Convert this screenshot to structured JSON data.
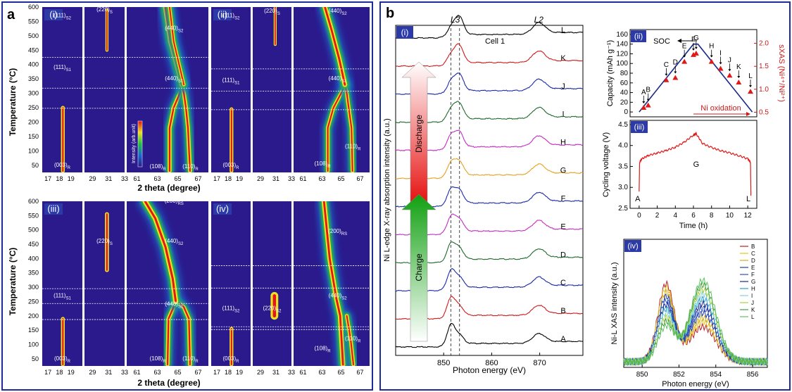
{
  "figure": {
    "panel_a_label": "a",
    "panel_b_label": "b",
    "colors": {
      "frame": "#1f2a9c",
      "bg": "#2b1a8c",
      "grid": "#ffffff",
      "roman_box": "#2c3aa8"
    }
  },
  "panel_a": {
    "y_label": "Temperature (°C)",
    "x_label": "2 theta (degree)",
    "y_ticks": [
      "50",
      "100",
      "150",
      "200",
      "250",
      "300",
      "350",
      "400",
      "450",
      "500",
      "550",
      "600"
    ],
    "x_ticks_1": [
      "17",
      "18",
      "19"
    ],
    "x_ticks_2": [
      "29",
      "31",
      "33"
    ],
    "x_ticks_3": [
      "61",
      "63",
      "65",
      "67"
    ],
    "colorbar_label": "Intensity (arb.unit)",
    "subpanels": [
      {
        "roman": "(i)",
        "transitions_c": [
          425,
          318,
          248
        ],
        "labels": [
          {
            "text": "(111)",
            "sub": "S2",
            "col": 0,
            "t": 565
          },
          {
            "text": "(111)",
            "sub": "S1",
            "col": 0,
            "t": 385
          },
          {
            "text": "(003)",
            "sub": "R",
            "col": 0,
            "t": 45
          },
          {
            "text": "(220)",
            "sub": "S",
            "col": 1,
            "t": 585
          },
          {
            "text": "(440)",
            "sub": "S2",
            "col": 2,
            "t": 520
          },
          {
            "text": "(440)",
            "sub": "S1",
            "col": 2,
            "t": 345
          },
          {
            "text": "(108)",
            "sub": "R",
            "col": 2,
            "t": 40
          },
          {
            "text": "(110)",
            "sub": "R",
            "col": 2,
            "t": 40
          }
        ]
      },
      {
        "roman": "(ii)",
        "transitions_c": [
          385,
          308,
          243
        ],
        "labels": [
          {
            "text": "(111)",
            "sub": "S2",
            "col": 0,
            "t": 565
          },
          {
            "text": "(111)",
            "sub": "S1",
            "col": 0,
            "t": 340
          },
          {
            "text": "(003)",
            "sub": "R",
            "col": 0,
            "t": 45
          },
          {
            "text": "(220)",
            "sub": "S",
            "col": 1,
            "t": 580
          },
          {
            "text": "(440)",
            "sub": "S2",
            "col": 2,
            "t": 580
          },
          {
            "text": "(440)",
            "sub": "S1",
            "col": 2,
            "t": 345
          },
          {
            "text": "(108)",
            "sub": "R",
            "col": 2,
            "t": 50
          },
          {
            "text": "(110)",
            "sub": "R",
            "col": 2,
            "t": 110
          }
        ]
      },
      {
        "roman": "(iii)",
        "transitions_c": [
          295,
          243,
          187
        ],
        "labels": [
          {
            "text": "(111)",
            "sub": "S1",
            "col": 0,
            "t": 265
          },
          {
            "text": "(003)",
            "sub": "R",
            "col": 0,
            "t": 45
          },
          {
            "text": "(220)",
            "sub": "S",
            "col": 1,
            "t": 455
          },
          {
            "text": "(200)",
            "sub": "RS",
            "col": 2,
            "t": 595
          },
          {
            "text": "(440)",
            "sub": "S2",
            "col": 2,
            "t": 455
          },
          {
            "text": "(440)",
            "sub": "S1",
            "col": 2,
            "t": 235
          },
          {
            "text": "(108)",
            "sub": "R",
            "col": 2,
            "t": 45
          },
          {
            "text": "(110)",
            "sub": "R",
            "col": 2,
            "t": 45
          }
        ]
      },
      {
        "roman": "(iv)",
        "transitions_c": [
          375,
          297,
          162,
          152
        ],
        "labels": [
          {
            "text": "(111)",
            "sub": "S2",
            "col": 0,
            "t": 220
          },
          {
            "text": "(003)",
            "sub": "R",
            "col": 0,
            "t": 45
          },
          {
            "text": "(220)",
            "sub": "S2",
            "col": 1,
            "t": 220
          },
          {
            "text": "(200)",
            "sub": "RS",
            "col": 2,
            "t": 490
          },
          {
            "text": "(440)",
            "sub": "S2",
            "col": 2,
            "t": 265
          },
          {
            "text": "(108)",
            "sub": "R",
            "col": 2,
            "t": 80
          },
          {
            "text": "(110)",
            "sub": "R",
            "col": 2,
            "t": 115
          }
        ]
      }
    ]
  },
  "panel_b": {
    "i": {
      "roman": "(i)",
      "cell": "Cell 1",
      "y_label": "Ni L-edge X-ray absorption intensity (a.u.)",
      "x_label": "Photon energy (eV)",
      "x_ticks": [
        "850",
        "860",
        "870"
      ],
      "edge_L3": "L3",
      "edge_L2": "L2",
      "discharge_label": "Discharge",
      "charge_label": "Charge"
    },
    "ii": {
      "roman": "(ii)",
      "y_label": "Capacity (mAh g⁻¹)",
      "y2_label": "sXAS (Ni⁴⁺/Ni²⁺)",
      "y_ticks": [
        "0",
        "20",
        "40",
        "60",
        "80",
        "100",
        "120",
        "140",
        "160"
      ],
      "y2_ticks": [
        "0.5",
        "1.0",
        "1.5",
        "2.0"
      ],
      "soc_label": "SOC",
      "ni_ox_label": "Ni oxidation"
    },
    "iii": {
      "roman": "(iii)",
      "y_label": "Cycling voltage (V)",
      "x_label": "Time (h)",
      "y_ticks": [
        "2.5",
        "3.0",
        "3.5",
        "4.0",
        "4.5"
      ],
      "x_ticks": [
        "0",
        "2",
        "4",
        "6",
        "8",
        "10",
        "12"
      ],
      "marker_A": "A",
      "marker_G": "G",
      "marker_L": "L"
    },
    "iv": {
      "roman": "(iv)",
      "y_label": "Ni-L XAS intensity (a.u.)",
      "x_label": "Photon energy (eV)",
      "x_ticks": [
        "850",
        "852",
        "854",
        "856"
      ]
    }
  },
  "chart_data": [
    {
      "type": "heatmap",
      "description_id": "a-in-situ-xrd",
      "x_ranges": [
        [
          16.5,
          20
        ],
        [
          28,
          33
        ],
        [
          60,
          68
        ]
      ],
      "ylim": [
        25,
        600
      ],
      "traces_i": [
        {
          "col": 0,
          "pts": [
            [
              18.3,
              30
            ],
            [
              18.3,
              250
            ]
          ],
          "w": 0.3
        },
        {
          "col": 2,
          "pts": [
            [
              64.2,
              30
            ],
            [
              64.2,
              180
            ],
            [
              64.6,
              250
            ],
            [
              65.2,
              300
            ],
            [
              65.4,
              330
            ]
          ],
          "w": 0.35
        },
        {
          "col": 2,
          "pts": [
            [
              66.2,
              30
            ],
            [
              66.0,
              180
            ],
            [
              65.8,
              250
            ],
            [
              65.6,
              300
            ],
            [
              65.4,
              330
            ]
          ],
          "w": 0.35
        },
        {
          "col": 2,
          "pts": [
            [
              65.4,
              330
            ],
            [
              64.9,
              400
            ],
            [
              64.3,
              480
            ],
            [
              63.8,
              600
            ]
          ],
          "w": 0.45
        },
        {
          "col": 2,
          "pts": [
            [
              65.6,
              330
            ],
            [
              65.0,
              420
            ],
            [
              64.6,
              480
            ],
            [
              64.2,
              600
            ]
          ],
          "w": 0.3
        },
        {
          "col": 1,
          "pts": [
            [
              30.8,
              450
            ],
            [
              30.8,
              590
            ]
          ],
          "w": 0.35
        }
      ],
      "traces_ii": [
        {
          "col": 0,
          "pts": [
            [
              18.3,
              30
            ],
            [
              18.3,
              245
            ]
          ],
          "w": 0.3
        },
        {
          "col": 2,
          "pts": [
            [
              63.6,
              30
            ],
            [
              63.6,
              180
            ],
            [
              64.2,
              250
            ],
            [
              65.0,
              300
            ],
            [
              65.4,
              330
            ]
          ],
          "w": 0.35
        },
        {
          "col": 2,
          "pts": [
            [
              66.2,
              30
            ],
            [
              66.1,
              180
            ],
            [
              65.8,
              250
            ],
            [
              65.6,
              300
            ],
            [
              65.4,
              330
            ]
          ],
          "w": 0.35
        },
        {
          "col": 2,
          "pts": [
            [
              65.4,
              330
            ],
            [
              64.8,
              420
            ],
            [
              64.0,
              520
            ],
            [
              63.3,
              600
            ]
          ],
          "w": 0.45
        },
        {
          "col": 1,
          "pts": [
            [
              30.9,
              470
            ],
            [
              30.9,
              600
            ]
          ],
          "w": 0.35
        }
      ],
      "traces_iii": [
        {
          "col": 0,
          "pts": [
            [
              18.3,
              30
            ],
            [
              18.3,
              190
            ]
          ],
          "w": 0.3
        },
        {
          "col": 2,
          "pts": [
            [
              64.0,
              30
            ],
            [
              64.1,
              190
            ],
            [
              64.7,
              240
            ]
          ],
          "w": 0.35
        },
        {
          "col": 2,
          "pts": [
            [
              66.2,
              30
            ],
            [
              66.1,
              190
            ],
            [
              65.6,
              230
            ],
            [
              65.0,
              250
            ]
          ],
          "w": 0.35
        },
        {
          "col": 2,
          "pts": [
            [
              64.8,
              250
            ],
            [
              64.5,
              330
            ],
            [
              63.8,
              440
            ],
            [
              62.8,
              540
            ],
            [
              61.8,
              600
            ]
          ],
          "w": 0.45
        },
        {
          "col": 1,
          "pts": [
            [
              30.8,
              360
            ],
            [
              30.8,
              555
            ]
          ],
          "w": 0.45
        }
      ],
      "traces_iv": [
        {
          "col": 0,
          "pts": [
            [
              18.3,
              30
            ],
            [
              18.3,
              155
            ]
          ],
          "w": 0.3
        },
        {
          "col": 2,
          "pts": [
            [
              65.2,
              30
            ],
            [
              64.9,
              200
            ],
            [
              64.5,
              260
            ],
            [
              63.8,
              400
            ],
            [
              63.2,
              600
            ]
          ],
          "w": 0.45
        },
        {
          "col": 2,
          "pts": [
            [
              66.3,
              30
            ],
            [
              66.0,
              120
            ],
            [
              65.6,
              200
            ]
          ],
          "w": 0.35
        },
        {
          "col": 1,
          "pts": [
            [
              30.8,
              200
            ],
            [
              30.8,
              270
            ]
          ],
          "w": 0.9
        }
      ]
    },
    {
      "type": "line",
      "description_id": "b-i-sxas-spectra",
      "xlim": [
        840,
        879
      ],
      "series": [
        {
          "name": "A",
          "color": "#000000"
        },
        {
          "name": "B",
          "color": "#d01a1a"
        },
        {
          "name": "C",
          "color": "#1a2aa8"
        },
        {
          "name": "D",
          "color": "#1e6b2a"
        },
        {
          "name": "E",
          "color": "#c42cc4"
        },
        {
          "name": "F",
          "color": "#1a2aa8"
        },
        {
          "name": "G",
          "color": "#e6a020"
        },
        {
          "name": "H",
          "color": "#c42cc4"
        },
        {
          "name": "I",
          "color": "#1e6b2a"
        },
        {
          "name": "J",
          "color": "#1a2aa8"
        },
        {
          "name": "K",
          "color": "#d01a1a"
        },
        {
          "name": "L",
          "color": "#000000"
        }
      ],
      "dashed_x": [
        851.5,
        853.3
      ]
    },
    {
      "type": "scatter",
      "description_id": "b-ii-capacity-sxas",
      "x": [
        0.5,
        1.0,
        3.0,
        4.0,
        5.0,
        6.0,
        6.3,
        8.0,
        9.0,
        10.0,
        11.0,
        12.3
      ],
      "points": [
        "A",
        "B",
        "C",
        "D",
        "E",
        "F",
        "G",
        "H",
        "I",
        "J",
        "K",
        "L"
      ],
      "capacity_line": [
        [
          0,
          0
        ],
        [
          6.0,
          140
        ],
        [
          6.5,
          140
        ],
        [
          12.5,
          0
        ]
      ],
      "sxas": [
        0.6,
        0.65,
        1.2,
        1.25,
        1.6,
        1.75,
        1.78,
        1.6,
        1.45,
        1.3,
        1.15,
        0.95
      ],
      "ylim": [
        -10,
        170
      ],
      "y2lim": [
        0.4,
        2.3
      ]
    },
    {
      "type": "line",
      "description_id": "b-iii-voltage",
      "xlim": [
        -1,
        13
      ],
      "ylim": [
        2.5,
        4.6
      ],
      "x": [
        0,
        0.05,
        0.3,
        1,
        2,
        3,
        4,
        5,
        6,
        6.3,
        7,
        8,
        9,
        10,
        11,
        12,
        12.3,
        12.35
      ],
      "y": [
        2.9,
        3.6,
        3.68,
        3.76,
        3.82,
        3.88,
        3.96,
        4.08,
        4.25,
        4.28,
        4.05,
        3.95,
        3.88,
        3.82,
        3.76,
        3.68,
        3.6,
        2.8
      ]
    },
    {
      "type": "line",
      "description_id": "b-iv-ni-l3-overlay",
      "xlim": [
        849,
        856.8
      ],
      "series": [
        {
          "name": "B",
          "color": "#b8202a"
        },
        {
          "name": "C",
          "color": "#e8c020"
        },
        {
          "name": "D",
          "color": "#d0b020"
        },
        {
          "name": "E",
          "color": "#2040b0"
        },
        {
          "name": "F",
          "color": "#3050c0"
        },
        {
          "name": "G",
          "color": "#1a2a90"
        },
        {
          "name": "H",
          "color": "#2aa0c8"
        },
        {
          "name": "I",
          "color": "#80d0e0"
        },
        {
          "name": "J",
          "color": "#a8d040"
        },
        {
          "name": "K",
          "color": "#40a040"
        },
        {
          "name": "L",
          "color": "#60c060"
        }
      ]
    }
  ]
}
